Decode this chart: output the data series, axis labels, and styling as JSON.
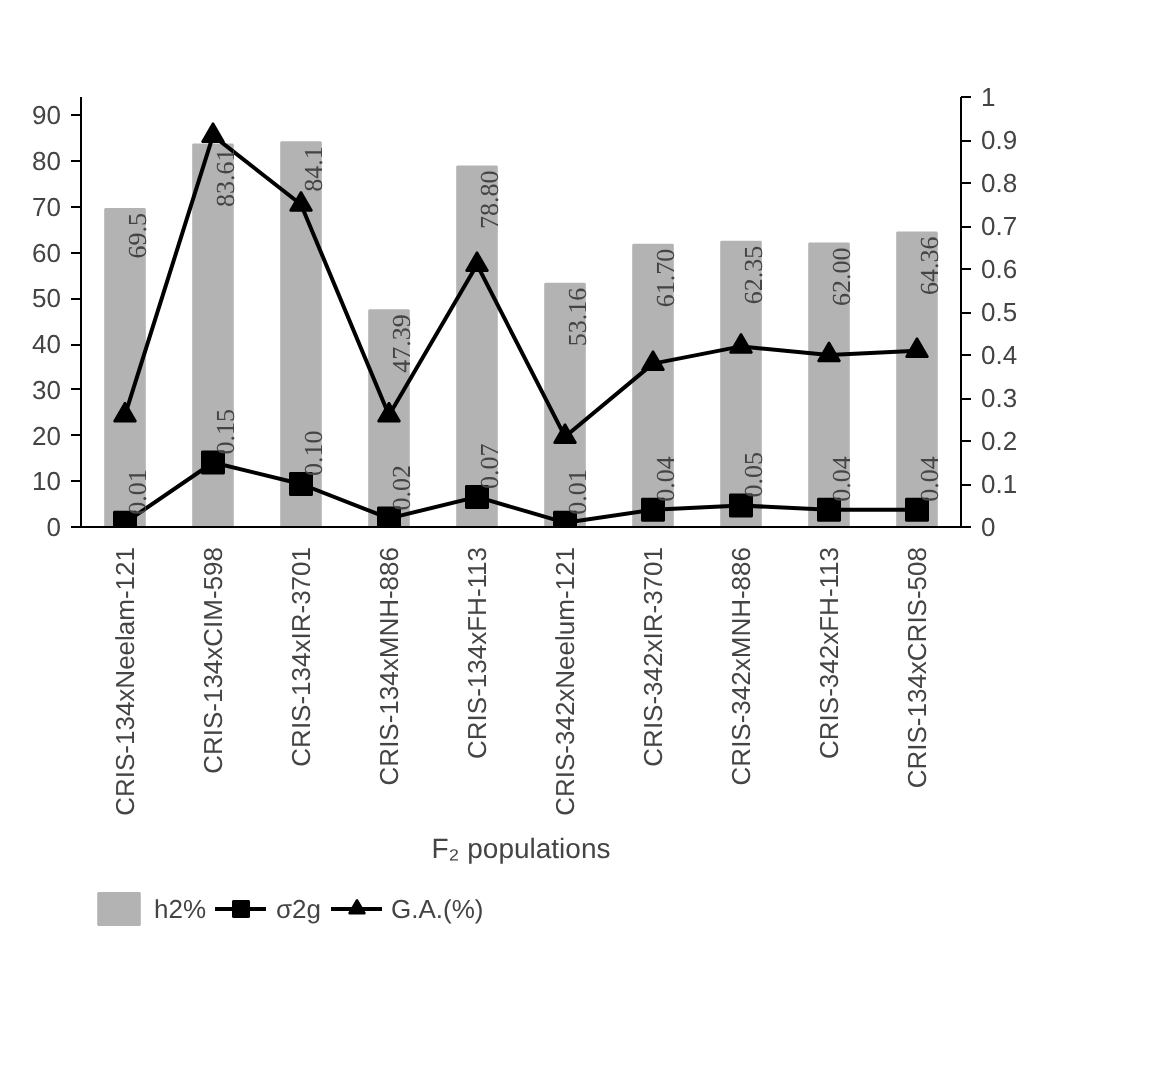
{
  "chart_data": {
    "type": "bar",
    "xlabel": "F₂ populations",
    "categories": [
      "CRIS-134xNeelam-121",
      "CRIS-134xCIM-598",
      "CRIS-134xIR-3701",
      "CRIS-134xMNH-886",
      "CRIS-134xFH-113",
      "CRIS-342xNeelum-121",
      "CRIS-342xIR-3701",
      "CRIS-342xMNH-886",
      "CRIS-342xFH-113",
      "CRIS-134xCRIS-508"
    ],
    "series": [
      {
        "name": "h2%",
        "color": "#b3b3b3",
        "values": [
          69.5,
          83.61,
          84.1,
          47.39,
          78.8,
          53.16,
          61.7,
          62.35,
          62.0,
          64.36
        ],
        "value_labels": [
          "69.5",
          "83.61",
          "84.1",
          "47.39",
          "78.80",
          "53.16",
          "61.70",
          "62.35",
          "62.00",
          "64.36"
        ]
      },
      {
        "name": "σ2g",
        "type": "line",
        "axis": "y2",
        "color": "#000000",
        "marker": "square",
        "values": [
          0.01,
          0.15,
          0.1,
          0.02,
          0.07,
          0.01,
          0.04,
          0.05,
          0.04,
          0.04
        ],
        "value_labels": [
          "0.01",
          "0.15",
          "0.10",
          "0.02",
          "0.07",
          "0.01",
          "0.04",
          "0.05",
          "0.04",
          "0.04"
        ]
      },
      {
        "name": "G.A.(%)",
        "type": "line",
        "axis": "y2",
        "color": "#000000",
        "marker": "triangle",
        "values": [
          0.26,
          0.91,
          0.75,
          0.26,
          0.61,
          0.21,
          0.38,
          0.42,
          0.4,
          0.41
        ]
      }
    ],
    "ylim": [
      0,
      94
    ],
    "yticks": [
      0,
      10,
      20,
      30,
      40,
      50,
      60,
      70,
      80,
      90
    ],
    "y2lim": [
      0,
      1
    ],
    "y2ticks": [
      0,
      0.1,
      0.2,
      0.3,
      0.4,
      0.5,
      0.6,
      0.7,
      0.8,
      0.9,
      1
    ],
    "grid": false,
    "legend": "bottom left",
    "line_style": "solid"
  }
}
